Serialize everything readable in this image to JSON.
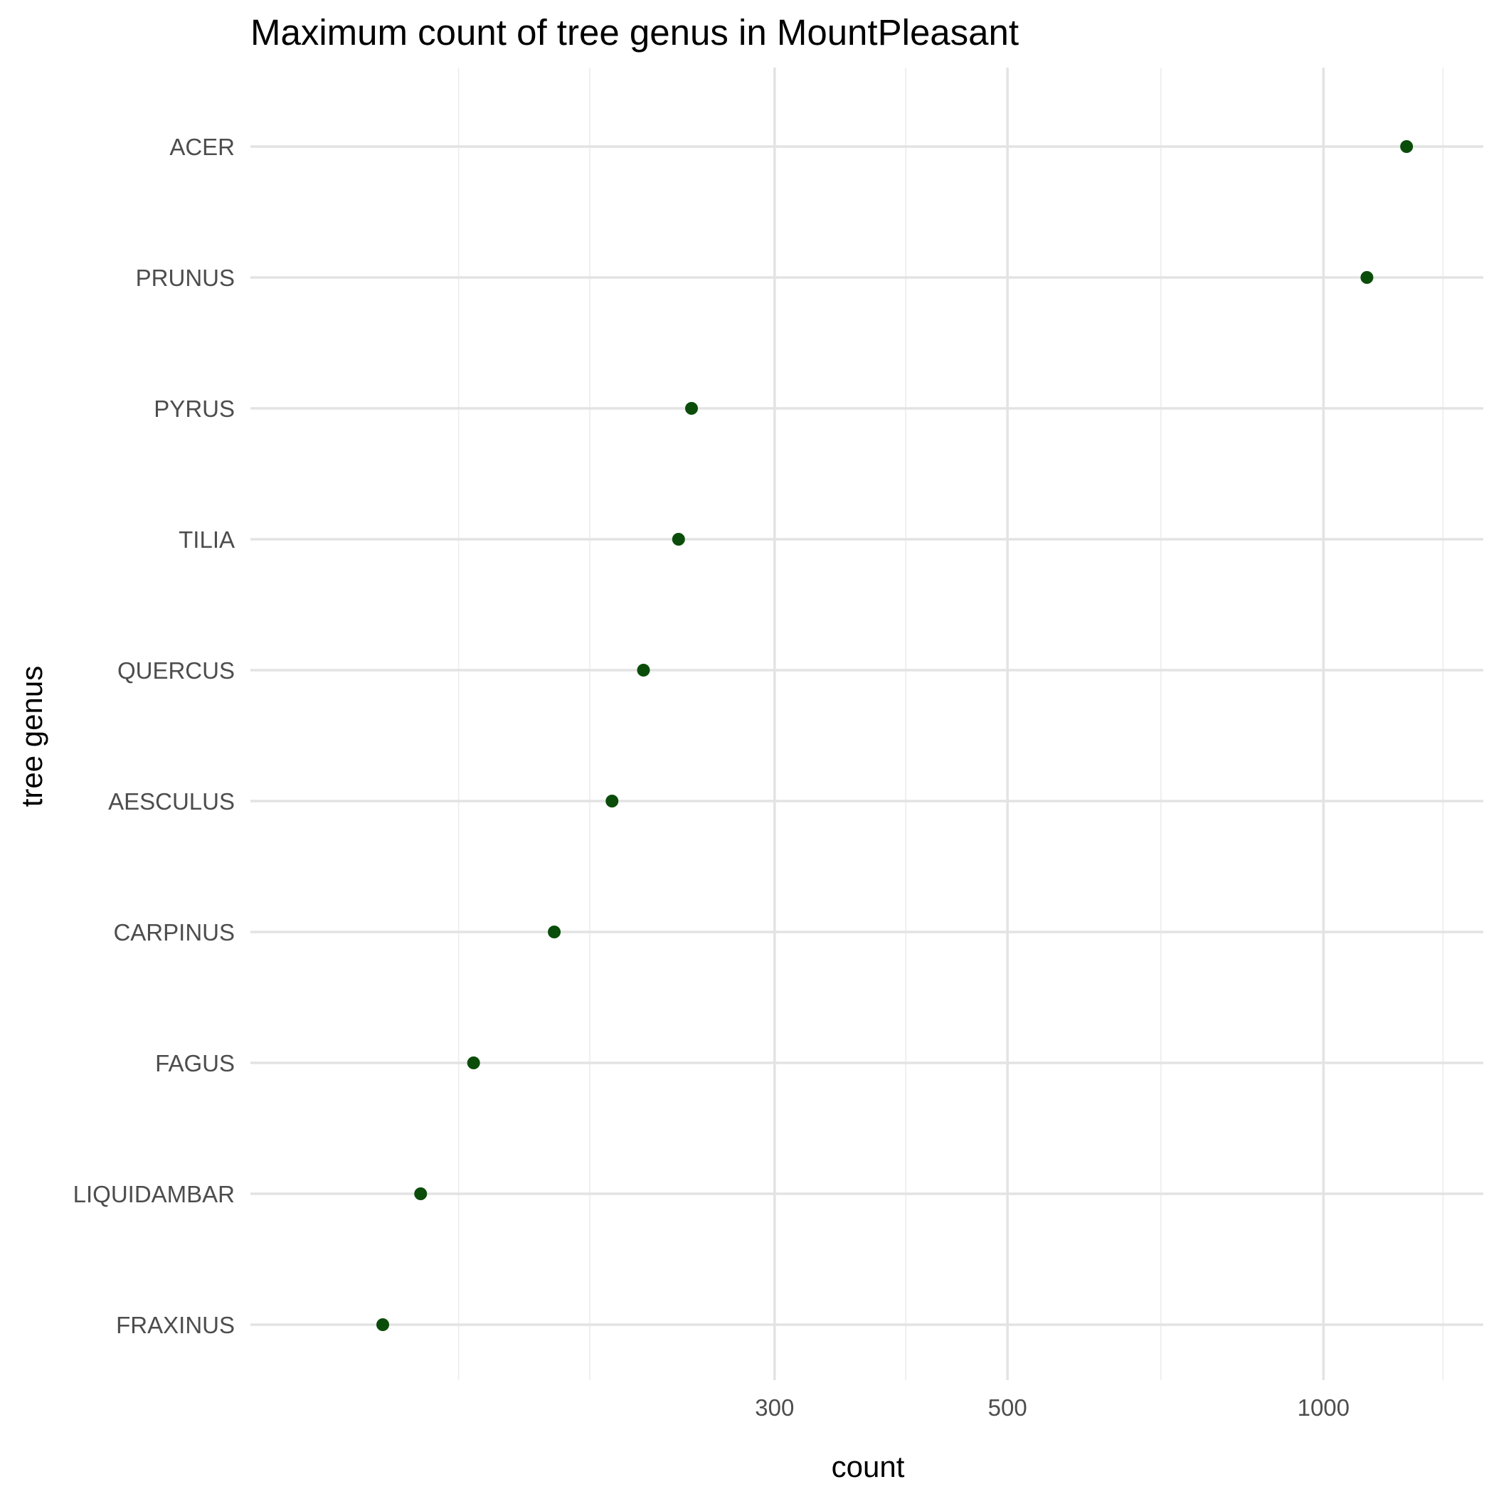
{
  "chart_data": {
    "type": "scatter",
    "title": "Maximum count of tree genus in MountPleasant",
    "xlabel": "count",
    "ylabel": "tree genus",
    "x_scale": "log10",
    "xlim": [
      95,
      1420
    ],
    "x_major_ticks": [
      300,
      500,
      1000
    ],
    "x_minor_ticks": [
      150,
      200,
      400,
      700,
      1300
    ],
    "grid": true,
    "point_color": "#0a4d0a",
    "categories": [
      "ACER",
      "PRUNUS",
      "PYRUS",
      "TILIA",
      "QUERCUS",
      "AESCULUS",
      "CARPINUS",
      "FAGUS",
      "LIQUIDAMBAR",
      "FRAXINUS"
    ],
    "values": [
      1200,
      1100,
      250,
      243,
      225,
      210,
      185,
      155,
      138,
      127
    ]
  }
}
